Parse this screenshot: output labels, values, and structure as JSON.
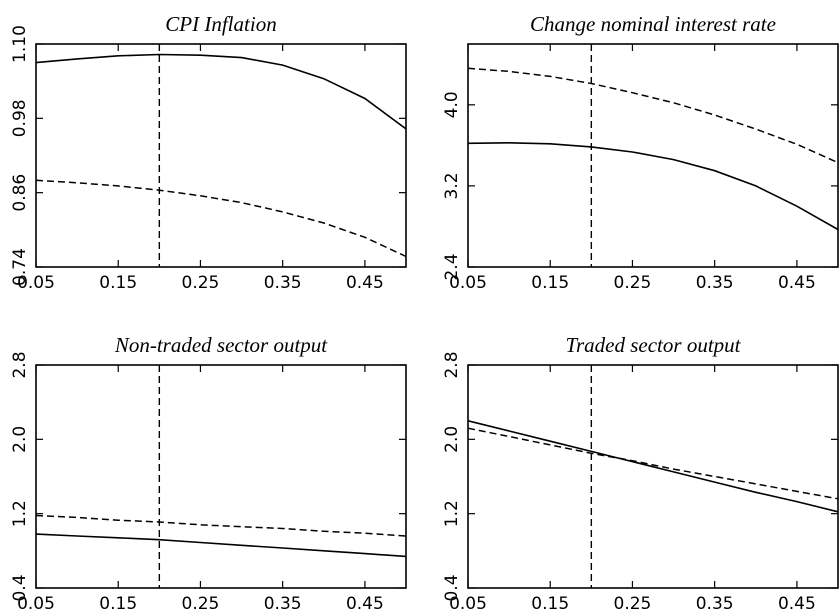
{
  "chart_data": [
    {
      "type": "line",
      "title": "CPI Inflation",
      "xlabel": "",
      "ylabel": "",
      "xlim": [
        0.05,
        0.5
      ],
      "ylim": [
        0.74,
        1.1
      ],
      "xticks": [
        "0.05",
        "0.15",
        "0.25",
        "0.35",
        "0.45"
      ],
      "yticks": [
        "0.74",
        "0.86",
        "0.98",
        "1.10"
      ],
      "vline_x": 0.2,
      "series": [
        {
          "style": "solid",
          "x": [
            0.05,
            0.1,
            0.15,
            0.2,
            0.25,
            0.3,
            0.35,
            0.4,
            0.45,
            0.5
          ],
          "values": [
            1.07,
            1.076,
            1.081,
            1.083,
            1.082,
            1.078,
            1.066,
            1.044,
            1.012,
            0.963
          ]
        },
        {
          "style": "dashed",
          "x": [
            0.05,
            0.1,
            0.15,
            0.2,
            0.25,
            0.3,
            0.35,
            0.4,
            0.45,
            0.5
          ],
          "values": [
            0.88,
            0.876,
            0.871,
            0.864,
            0.855,
            0.844,
            0.829,
            0.811,
            0.788,
            0.757
          ]
        }
      ]
    },
    {
      "type": "line",
      "title": "Change nominal interest rate",
      "xlabel": "",
      "ylabel": "",
      "xlim": [
        0.05,
        0.5
      ],
      "ylim": [
        2.4,
        4.6
      ],
      "xticks": [
        "0.05",
        "0.15",
        "0.25",
        "0.35",
        "0.45"
      ],
      "yticks": [
        "2.4",
        "3.2",
        "4.0"
      ],
      "vline_x": 0.2,
      "series": [
        {
          "style": "solid",
          "x": [
            0.05,
            0.1,
            0.15,
            0.2,
            0.25,
            0.3,
            0.35,
            0.4,
            0.45,
            0.5
          ],
          "values": [
            3.62,
            3.625,
            3.615,
            3.585,
            3.535,
            3.46,
            3.35,
            3.2,
            3.0,
            2.77
          ]
        },
        {
          "style": "dashed",
          "x": [
            0.05,
            0.1,
            0.15,
            0.2,
            0.25,
            0.3,
            0.35,
            0.4,
            0.45,
            0.5
          ],
          "values": [
            4.36,
            4.33,
            4.28,
            4.21,
            4.12,
            4.02,
            3.9,
            3.76,
            3.61,
            3.43
          ]
        }
      ]
    },
    {
      "type": "line",
      "title": "Non-traded sector output",
      "xlabel": "",
      "ylabel": "",
      "xlim": [
        0.05,
        0.5
      ],
      "ylim": [
        0.4,
        2.8
      ],
      "xticks": [
        "0.05",
        "0.15",
        "0.25",
        "0.35",
        "0.45"
      ],
      "yticks": [
        "0.4",
        "1.2",
        "2.0",
        "2.8"
      ],
      "vline_x": 0.2,
      "series": [
        {
          "style": "solid",
          "x": [
            0.05,
            0.1,
            0.15,
            0.2,
            0.25,
            0.3,
            0.35,
            0.4,
            0.45,
            0.5
          ],
          "values": [
            0.98,
            0.96,
            0.94,
            0.92,
            0.89,
            0.86,
            0.83,
            0.8,
            0.77,
            0.74
          ]
        },
        {
          "style": "dashed",
          "x": [
            0.05,
            0.1,
            0.15,
            0.2,
            0.25,
            0.3,
            0.35,
            0.4,
            0.45,
            0.5
          ],
          "values": [
            1.18,
            1.16,
            1.13,
            1.11,
            1.08,
            1.06,
            1.04,
            1.01,
            0.99,
            0.96
          ]
        }
      ]
    },
    {
      "type": "line",
      "title": "Traded sector output",
      "xlabel": "",
      "ylabel": "",
      "xlim": [
        0.05,
        0.5
      ],
      "ylim": [
        0.4,
        2.8
      ],
      "xticks": [
        "0.05",
        "0.15",
        "0.25",
        "0.35",
        "0.45"
      ],
      "yticks": [
        "0.4",
        "1.2",
        "2.0",
        "2.8"
      ],
      "vline_x": 0.2,
      "series": [
        {
          "style": "solid",
          "x": [
            0.05,
            0.1,
            0.15,
            0.2,
            0.25,
            0.3,
            0.35,
            0.4,
            0.45,
            0.5
          ],
          "values": [
            2.2,
            2.09,
            1.98,
            1.87,
            1.76,
            1.65,
            1.54,
            1.43,
            1.33,
            1.22
          ]
        },
        {
          "style": "dashed",
          "x": [
            0.05,
            0.1,
            0.15,
            0.2,
            0.25,
            0.3,
            0.35,
            0.4,
            0.45,
            0.5
          ],
          "values": [
            2.12,
            2.03,
            1.94,
            1.85,
            1.77,
            1.68,
            1.6,
            1.52,
            1.44,
            1.36
          ]
        }
      ]
    }
  ]
}
